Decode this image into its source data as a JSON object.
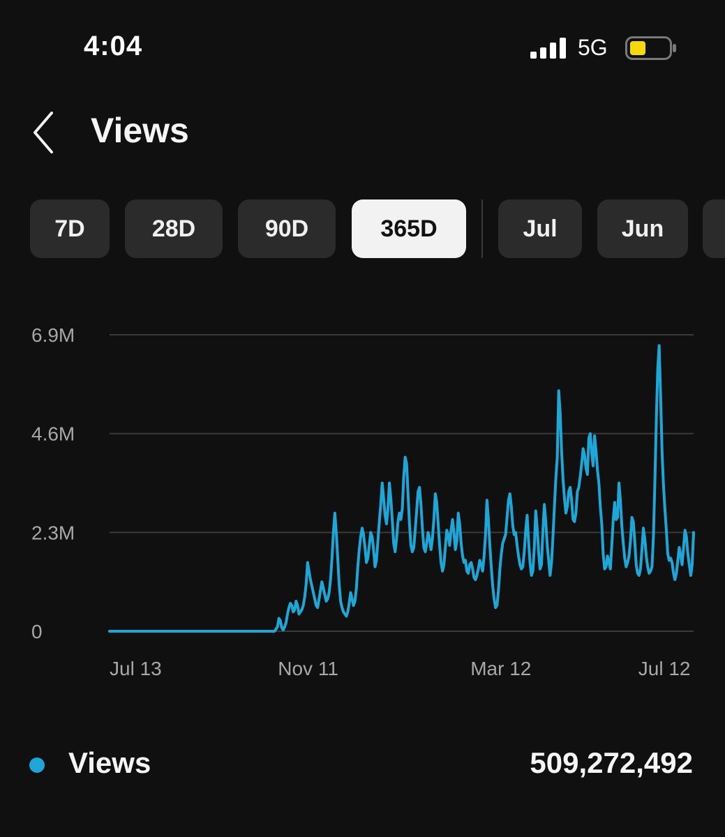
{
  "status_bar": {
    "time": "4:04",
    "network": "5G",
    "battery_color": "#f5d90a"
  },
  "header": {
    "title": "Views"
  },
  "periods": [
    {
      "label": "7D",
      "active": false
    },
    {
      "label": "28D",
      "active": false
    },
    {
      "label": "90D",
      "active": false
    },
    {
      "label": "365D",
      "active": true
    },
    {
      "label": "Jul",
      "active": false
    },
    {
      "label": "Jun",
      "active": false
    }
  ],
  "colors": {
    "background": "#101010",
    "series": "#1fa6d6",
    "pill": "#2b2b2b",
    "pill_active": "#f2f2f2"
  },
  "chart_data": {
    "type": "line",
    "x_labels": [
      "Jul 13",
      "Nov 11",
      "Mar 12",
      "Jul 12"
    ],
    "y_ticks": [
      "0",
      "2.3M",
      "4.6M",
      "6.9M"
    ],
    "ylim": [
      0,
      6.9
    ],
    "y_unit": "M",
    "grid": true,
    "series": [
      {
        "name": "Views",
        "x_range": [
          "Jul 13",
          "Jul 12"
        ],
        "values": [
          0,
          0,
          0,
          0,
          0,
          0,
          0,
          0,
          0,
          0,
          0,
          0,
          0,
          0,
          0,
          0,
          0,
          0,
          0,
          0,
          0,
          0,
          0,
          0,
          0,
          0,
          0,
          0,
          0,
          0,
          0,
          0,
          0,
          0,
          0,
          0,
          0,
          0,
          0,
          0,
          0,
          0,
          0,
          0,
          0,
          0,
          0,
          0,
          0,
          0,
          0,
          0,
          0,
          0,
          0,
          0,
          0,
          0,
          0,
          0,
          0,
          0,
          0,
          0,
          0,
          0,
          0,
          0,
          0,
          0,
          0,
          0,
          0,
          0,
          0,
          0,
          0,
          0,
          0,
          0,
          0,
          0,
          0,
          0,
          0,
          0,
          0,
          0,
          0,
          0,
          0,
          0,
          0,
          0,
          0,
          0,
          0,
          0,
          0,
          0,
          0,
          0,
          0,
          0,
          0,
          0,
          0,
          0,
          0,
          0,
          0,
          0,
          0,
          0,
          0,
          0,
          0.05,
          0.1,
          0.3,
          0.25,
          0.08,
          0.03,
          0.1,
          0.2,
          0.4,
          0.55,
          0.65,
          0.6,
          0.45,
          0.5,
          0.7,
          0.6,
          0.4,
          0.45,
          0.5,
          0.6,
          0.8,
          1.1,
          1.6,
          1.4,
          1.2,
          1.05,
          0.9,
          0.75,
          0.6,
          0.55,
          0.75,
          0.95,
          1.15,
          1.0,
          0.85,
          0.7,
          0.75,
          0.9,
          1.2,
          1.7,
          2.3,
          2.75,
          2.3,
          1.7,
          1.1,
          0.7,
          0.55,
          0.45,
          0.4,
          0.35,
          0.45,
          0.65,
          0.9,
          0.75,
          0.6,
          0.7,
          1.0,
          1.5,
          1.9,
          2.2,
          2.4,
          2.25,
          1.95,
          1.6,
          1.7,
          2.0,
          2.3,
          2.2,
          1.9,
          1.5,
          1.65,
          2.1,
          2.55,
          2.95,
          3.45,
          3.1,
          2.7,
          2.5,
          2.85,
          3.45,
          3.1,
          2.6,
          2.05,
          1.85,
          2.15,
          2.55,
          2.75,
          2.6,
          2.85,
          3.6,
          4.05,
          3.9,
          3.2,
          2.5,
          2.0,
          1.85,
          1.95,
          2.35,
          2.8,
          3.25,
          3.35,
          2.95,
          2.4,
          1.95,
          1.85,
          2.05,
          2.3,
          2.15,
          1.9,
          2.15,
          2.6,
          3.2,
          3.0,
          2.5,
          2.0,
          1.6,
          1.4,
          1.55,
          1.95,
          2.35,
          2.25,
          2.0,
          2.35,
          2.6,
          2.3,
          1.9,
          2.1,
          2.75,
          2.5,
          2.05,
          1.75,
          1.6,
          1.65,
          1.4,
          1.35,
          1.55,
          1.6,
          1.45,
          1.25,
          1.2,
          1.3,
          1.45,
          1.65,
          1.55,
          1.4,
          1.75,
          2.25,
          3.05,
          2.6,
          2.0,
          1.5,
          1.05,
          0.75,
          0.55,
          0.6,
          0.95,
          1.45,
          1.8,
          2.05,
          2.15,
          2.25,
          2.65,
          3.05,
          3.2,
          2.9,
          2.45,
          2.25,
          2.3,
          2.0,
          1.75,
          1.55,
          1.45,
          1.5,
          1.85,
          2.35,
          2.7,
          2.1,
          1.6,
          1.3,
          1.4,
          1.95,
          2.8,
          2.4,
          1.85,
          1.45,
          1.55,
          2.35,
          2.95,
          2.55,
          2.0,
          1.65,
          1.3,
          1.6,
          2.2,
          2.9,
          3.55,
          4.05,
          5.6,
          5.1,
          4.2,
          3.55,
          3.1,
          2.75,
          2.9,
          3.25,
          3.35,
          3.05,
          2.6,
          2.55,
          2.75,
          3.25,
          3.35,
          3.6,
          3.9,
          4.25,
          4.1,
          3.8,
          3.65,
          4.5,
          4.6,
          4.15,
          3.85,
          4.55,
          4.2,
          3.75,
          3.45,
          2.9,
          2.5,
          1.8,
          1.45,
          1.5,
          1.75,
          1.6,
          1.45,
          2.0,
          2.6,
          3.0,
          2.6,
          2.65,
          3.45,
          3.05,
          2.45,
          2.05,
          1.7,
          1.5,
          1.6,
          1.75,
          2.1,
          2.65,
          2.55,
          2.1,
          1.55,
          1.35,
          1.3,
          1.45,
          1.9,
          2.4,
          2.15,
          1.75,
          1.5,
          1.35,
          1.4,
          1.5,
          2.2,
          3.45,
          4.9,
          6.1,
          6.65,
          5.5,
          4.2,
          3.4,
          2.85,
          2.35,
          1.8,
          1.65,
          1.7,
          1.6,
          1.35,
          1.2,
          1.35,
          1.65,
          1.95,
          1.75,
          1.55,
          1.95,
          2.35,
          2.2,
          1.8,
          1.55,
          1.3,
          1.55,
          2.3
        ]
      }
    ]
  },
  "legend": {
    "label": "Views",
    "total": "509,272,492"
  }
}
